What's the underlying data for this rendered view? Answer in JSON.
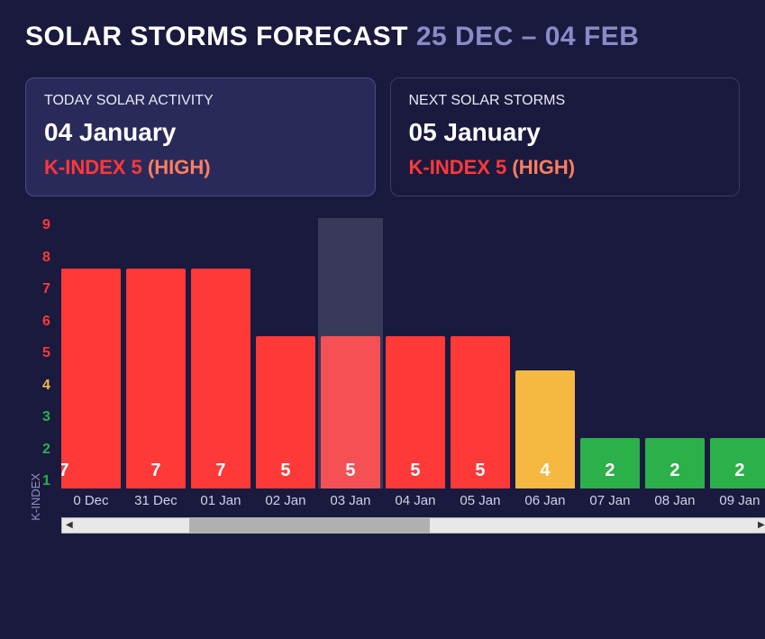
{
  "title": {
    "main": "SOLAR STORMS FORECAST",
    "date_range": "25 DEC – 04 FEB"
  },
  "cards": {
    "today": {
      "label": "TODAY SOLAR ACTIVITY",
      "date": "04 January",
      "kindex_text": "K-INDEX 5",
      "level_text": "(HIGH)",
      "kindex_color": "#ff3838",
      "level_color": "#ff7e5f",
      "active": true
    },
    "next": {
      "label": "NEXT SOLAR STORMS",
      "date": "05 January",
      "kindex_text": "K-INDEX 5",
      "level_text": "(HIGH)",
      "kindex_color": "#ff3838",
      "level_color": "#ff7e5f",
      "active": false
    }
  },
  "chart": {
    "type": "bar",
    "y_axis_label": "K-INDEX",
    "ylim": [
      1,
      9
    ],
    "y_ticks": [
      {
        "v": 9,
        "color": "#ff3838"
      },
      {
        "v": 8,
        "color": "#ff3838"
      },
      {
        "v": 7,
        "color": "#ff3838"
      },
      {
        "v": 6,
        "color": "#ff3838"
      },
      {
        "v": 5,
        "color": "#ff3838"
      },
      {
        "v": 4,
        "color": "#f5b942"
      },
      {
        "v": 3,
        "color": "#2bb04a"
      },
      {
        "v": 2,
        "color": "#2bb04a"
      },
      {
        "v": 1,
        "color": "#2bb04a"
      }
    ],
    "background_color": "#1a1a3e",
    "bar_color_high": "#ff3838",
    "bar_color_mid": "#f5b942",
    "bar_color_low": "#2bb04a",
    "highlight_index": 4,
    "bars": [
      {
        "label": "0 Dec",
        "value": 7,
        "color": "#ff3838",
        "clip_left": true
      },
      {
        "label": "31 Dec",
        "value": 7,
        "color": "#ff3838"
      },
      {
        "label": "01 Jan",
        "value": 7,
        "color": "#ff3838"
      },
      {
        "label": "02 Jan",
        "value": 5,
        "color": "#ff3838"
      },
      {
        "label": "03 Jan",
        "value": 5,
        "color": "#ff3838"
      },
      {
        "label": "04 Jan",
        "value": 5,
        "color": "#ff3838"
      },
      {
        "label": "05 Jan",
        "value": 5,
        "color": "#ff3838"
      },
      {
        "label": "06 Jan",
        "value": 4,
        "color": "#f5b942"
      },
      {
        "label": "07 Jan",
        "value": 2,
        "color": "#2bb04a"
      },
      {
        "label": "08 Jan",
        "value": 2,
        "color": "#2bb04a"
      },
      {
        "label": "09 Jan",
        "value": 2,
        "color": "#2bb04a"
      }
    ],
    "scrollbar": {
      "thumb_left_pct": 18,
      "thumb_width_pct": 34
    }
  }
}
